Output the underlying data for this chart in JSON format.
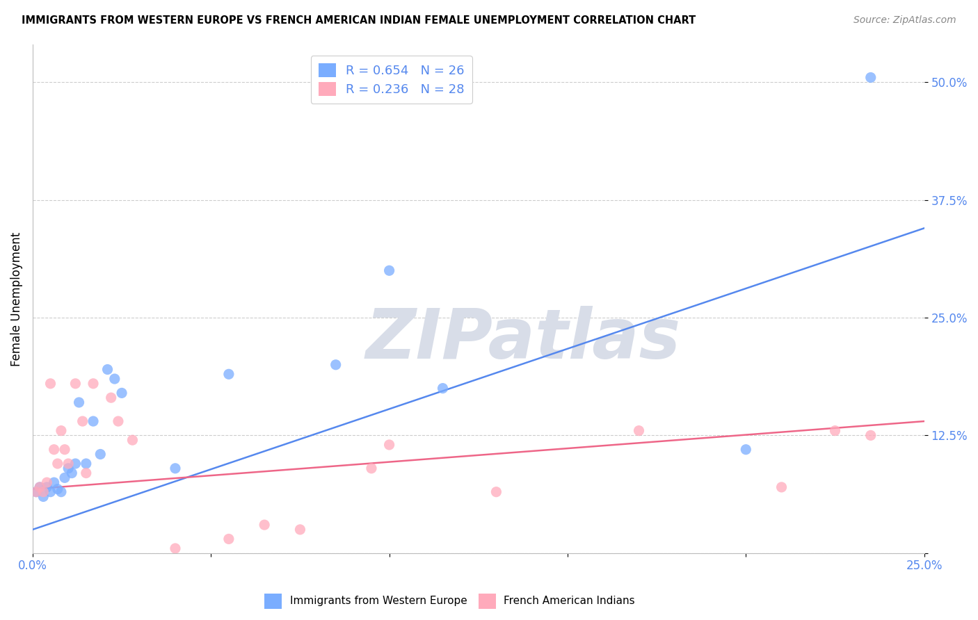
{
  "title": "IMMIGRANTS FROM WESTERN EUROPE VS FRENCH AMERICAN INDIAN FEMALE UNEMPLOYMENT CORRELATION CHART",
  "source": "Source: ZipAtlas.com",
  "ylabel": "Female Unemployment",
  "xlim": [
    0.0,
    0.25
  ],
  "ylim": [
    0.0,
    0.54
  ],
  "x_ticks": [
    0.0,
    0.05,
    0.1,
    0.15,
    0.2,
    0.25
  ],
  "x_tick_labels": [
    "0.0%",
    "",
    "",
    "",
    "",
    "25.0%"
  ],
  "y_ticks": [
    0.0,
    0.125,
    0.25,
    0.375,
    0.5
  ],
  "y_tick_labels": [
    "",
    "12.5%",
    "25.0%",
    "37.5%",
    "50.0%"
  ],
  "blue_scatter_x": [
    0.001,
    0.002,
    0.003,
    0.004,
    0.005,
    0.006,
    0.007,
    0.008,
    0.009,
    0.01,
    0.011,
    0.012,
    0.013,
    0.015,
    0.017,
    0.019,
    0.021,
    0.023,
    0.025,
    0.04,
    0.055,
    0.085,
    0.1,
    0.115,
    0.2,
    0.235
  ],
  "blue_scatter_y": [
    0.065,
    0.07,
    0.06,
    0.07,
    0.065,
    0.075,
    0.068,
    0.065,
    0.08,
    0.09,
    0.085,
    0.095,
    0.16,
    0.095,
    0.14,
    0.105,
    0.195,
    0.185,
    0.17,
    0.09,
    0.19,
    0.2,
    0.3,
    0.175,
    0.11,
    0.505
  ],
  "pink_scatter_x": [
    0.001,
    0.002,
    0.003,
    0.004,
    0.005,
    0.006,
    0.007,
    0.008,
    0.009,
    0.01,
    0.012,
    0.014,
    0.015,
    0.017,
    0.022,
    0.024,
    0.028,
    0.04,
    0.055,
    0.065,
    0.075,
    0.095,
    0.1,
    0.13,
    0.17,
    0.21,
    0.225,
    0.235
  ],
  "pink_scatter_y": [
    0.065,
    0.07,
    0.065,
    0.075,
    0.18,
    0.11,
    0.095,
    0.13,
    0.11,
    0.095,
    0.18,
    0.14,
    0.085,
    0.18,
    0.165,
    0.14,
    0.12,
    0.005,
    0.015,
    0.03,
    0.025,
    0.09,
    0.115,
    0.065,
    0.13,
    0.07,
    0.13,
    0.125
  ],
  "blue_line_x0": 0.0,
  "blue_line_x1": 0.25,
  "blue_line_y0": 0.025,
  "blue_line_y1": 0.345,
  "pink_line_x0": 0.0,
  "pink_line_x1": 0.25,
  "pink_line_y0": 0.068,
  "pink_line_y1": 0.14,
  "blue_R": "0.654",
  "blue_N": "26",
  "pink_R": "0.236",
  "pink_N": "28",
  "blue_color": "#7aadff",
  "pink_color": "#ffaabb",
  "blue_line_color": "#5588ee",
  "pink_line_color": "#ee6688",
  "scatter_alpha": 0.75,
  "scatter_size": 120,
  "grid_color": "#cccccc",
  "watermark_color": "#d8dde8",
  "tick_color": "#5588ee",
  "background_color": "#ffffff",
  "legend_label_blue": "Immigrants from Western Europe",
  "legend_label_pink": "French American Indians"
}
